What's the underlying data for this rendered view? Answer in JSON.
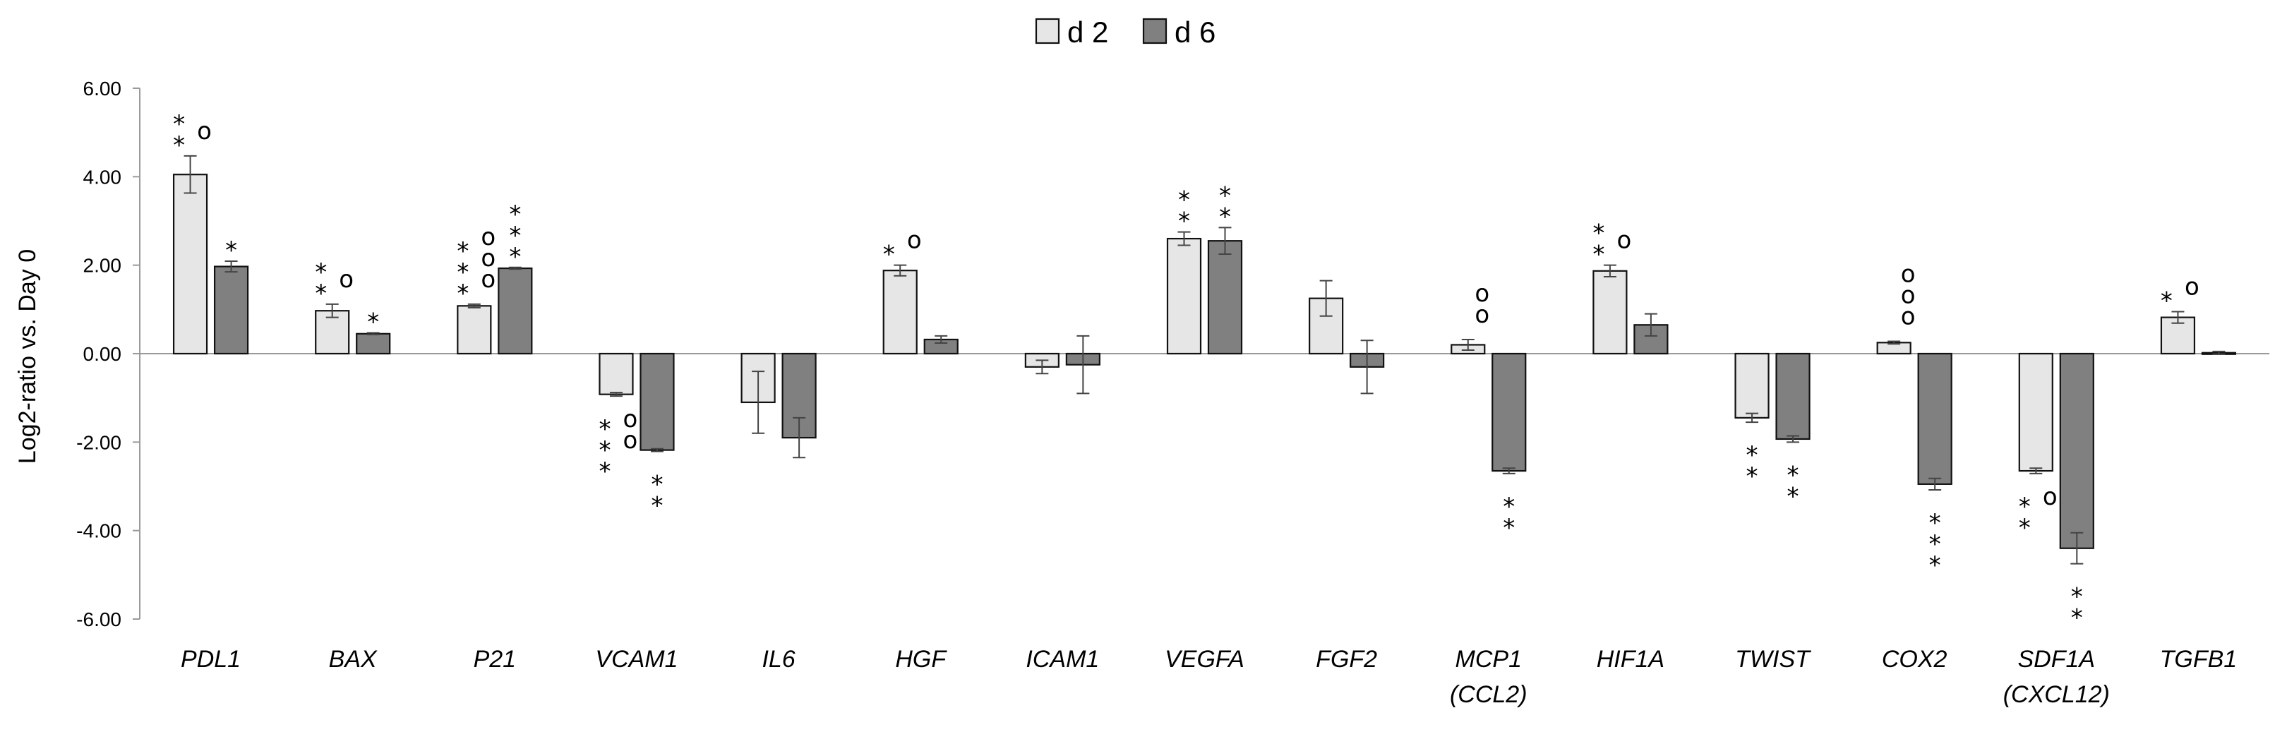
{
  "chart_data": {
    "type": "bar",
    "ylabel": "Log2-ratio vs. Day 0",
    "ylim": [
      -6,
      6
    ],
    "yticks": [
      "6.00",
      "4.00",
      "2.00",
      "0.00",
      "-2.00",
      "-4.00",
      "-6.00"
    ],
    "tick_values": [
      6,
      4,
      2,
      0,
      -2,
      -4,
      -6
    ],
    "categories": [
      [
        "PDL1"
      ],
      [
        "BAX"
      ],
      [
        "P21"
      ],
      [
        "VCAM1"
      ],
      [
        "IL6"
      ],
      [
        "HGF"
      ],
      [
        "ICAM1"
      ],
      [
        "VEGFA"
      ],
      [
        "FGF2"
      ],
      [
        "MCP1",
        "(CCL2)"
      ],
      [
        "HIF1A"
      ],
      [
        "TWIST"
      ],
      [
        "COX2"
      ],
      [
        "SDF1A",
        "(CXCL12)"
      ],
      [
        "TGFB1"
      ]
    ],
    "series": [
      {
        "name": "d 2",
        "color": "#e6e6e6",
        "values": [
          4.05,
          0.97,
          1.08,
          -0.92,
          -1.1,
          1.88,
          -0.3,
          2.6,
          1.25,
          0.2,
          1.87,
          -1.45,
          0.25,
          -2.65,
          0.82
        ],
        "errors": [
          0.42,
          0.15,
          0.04,
          0.04,
          0.7,
          0.12,
          0.15,
          0.15,
          0.4,
          0.12,
          0.13,
          0.1,
          0.03,
          0.06,
          0.13
        ],
        "annotations": [
          "**",
          "**",
          "***",
          "***",
          "",
          "*",
          "",
          "**",
          "",
          "",
          "**",
          "**",
          "",
          "**",
          "*"
        ],
        "circles": [
          "o",
          "o",
          "ooo",
          "oo",
          "",
          "o",
          "",
          "",
          "",
          "oo",
          "o",
          "",
          "ooo",
          "o",
          "o"
        ]
      },
      {
        "name": "d 6",
        "color": "#808080",
        "values": [
          1.97,
          0.45,
          1.93,
          -2.18,
          -1.9,
          0.32,
          -0.25,
          2.55,
          -0.3,
          -2.65,
          0.65,
          -1.93,
          -2.95,
          -4.4,
          0.02
        ],
        "errors": [
          0.12,
          0.02,
          0.02,
          0.03,
          0.45,
          0.08,
          0.65,
          0.3,
          0.6,
          0.06,
          0.25,
          0.07,
          0.13,
          0.35,
          0.03
        ],
        "annotations": [
          "*",
          "*",
          "***",
          "**",
          "",
          "",
          "",
          "**",
          "",
          "**",
          "",
          "**",
          "***",
          "**",
          ""
        ],
        "circles": [
          "",
          "",
          "",
          "",
          "",
          "",
          "",
          "",
          "",
          "",
          "",
          "",
          "",
          "",
          ""
        ]
      }
    ]
  }
}
